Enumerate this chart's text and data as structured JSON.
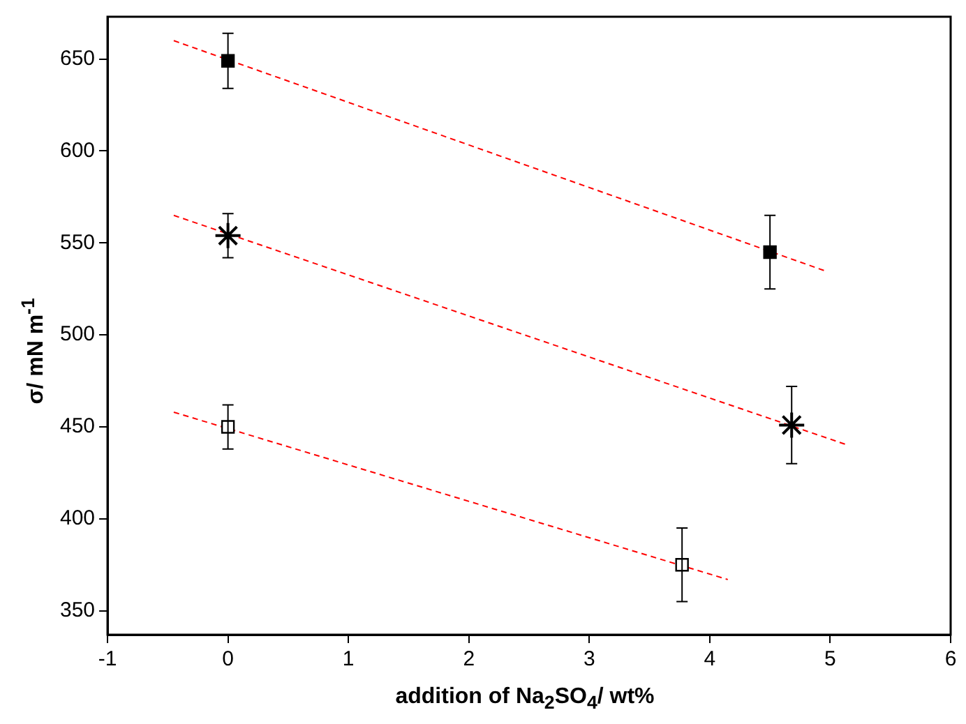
{
  "chart_data": {
    "type": "scatter",
    "xlabel": "addition of Na$_{2}$SO$_{4}$/ wt%",
    "ylabel": "σ/ mN m$^{-1}$",
    "xlim": [
      -1,
      6
    ],
    "xticks": [
      -1,
      0,
      1,
      2,
      3,
      4,
      5,
      6
    ],
    "ylim": [
      337,
      673
    ],
    "yticks": [
      350,
      400,
      450,
      500,
      550,
      600,
      650
    ],
    "grid": false,
    "legend": false,
    "series": [
      {
        "marker": "square",
        "color": "#000000",
        "x": [
          0,
          4.5
        ],
        "values": [
          649,
          545
        ],
        "errors": [
          15,
          20
        ]
      },
      {
        "marker": "cross",
        "color": "#000000",
        "x": [
          0,
          4.68
        ],
        "values": [
          554,
          451
        ],
        "errors": [
          12,
          21
        ]
      },
      {
        "marker": "square",
        "color": "#ffffff",
        "x": [
          0,
          3.77
        ],
        "values": [
          450,
          375
        ],
        "errors": [
          12,
          20
        ]
      },
      {
        "type": "line",
        "line_style": "dashed",
        "color": "#ff0000",
        "x": [
          -0.45,
          4.95
        ],
        "values": [
          660,
          535
        ]
      },
      {
        "type": "line",
        "line_style": "dashed",
        "color": "#ff0000",
        "x": [
          -0.45,
          5.15
        ],
        "values": [
          565,
          440
        ]
      },
      {
        "type": "line",
        "line_style": "dashed",
        "color": "#ff0000",
        "x": [
          -0.45,
          4.15
        ],
        "values": [
          458,
          367
        ]
      }
    ]
  }
}
